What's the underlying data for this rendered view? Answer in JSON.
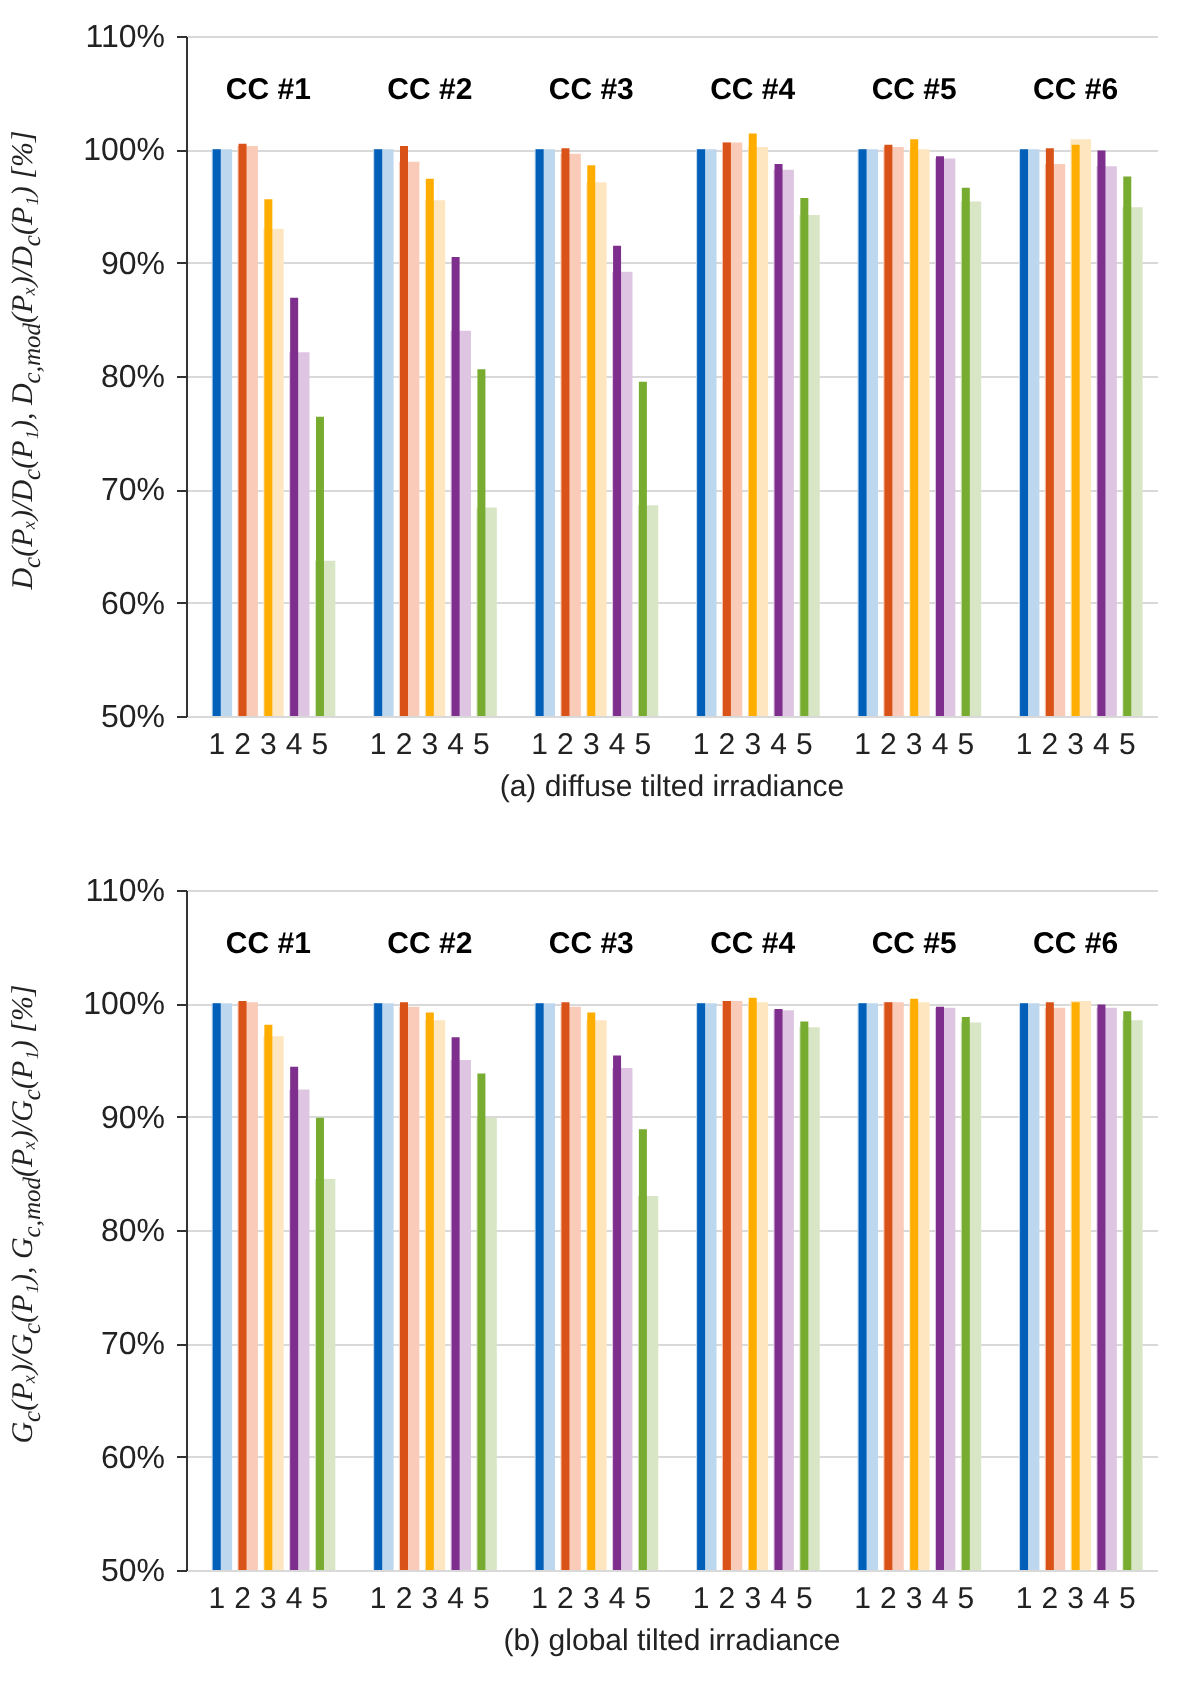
{
  "chart_data": [
    {
      "type": "bar",
      "xlabel": "(a) diffuse tilted irradiance",
      "ylabel": "D$_{c}$(Pₓ)/D$_{c}$(P₁), D$_{c,mod}$(Pₓ)/D$_{c}$(P₁) [%]",
      "categories": [
        "CC #1",
        "CC #2",
        "CC #3",
        "CC #4",
        "CC #5",
        "CC #6"
      ],
      "ylim": [
        50,
        110
      ],
      "yticks": [
        {
          "value": 50,
          "label": "50%"
        },
        {
          "value": 60,
          "label": "60%"
        },
        {
          "value": 70,
          "label": "70%"
        },
        {
          "value": 80,
          "label": "80%"
        },
        {
          "value": 90,
          "label": "90%"
        },
        {
          "value": 100,
          "label": "100%"
        },
        {
          "value": 110,
          "label": "110%"
        }
      ],
      "grid": "y",
      "series": [
        {
          "color": "#bcd7ee",
          "values": [
            100,
            100,
            100,
            100,
            100,
            100
          ]
        },
        {
          "color": "#f9cbb8",
          "values": [
            100.3,
            98.9,
            99.6,
            100.6,
            100.2,
            98.7
          ]
        },
        {
          "color": "#fde6c0",
          "values": [
            93.0,
            95.5,
            97.1,
            100.2,
            100,
            100.9
          ]
        },
        {
          "color": "#dec6e2",
          "values": [
            82.1,
            84.0,
            89.2,
            98.2,
            99.2,
            98.5
          ]
        },
        {
          "color": "#d8e6c6",
          "values": [
            63.7,
            68.4,
            68.6,
            94.2,
            95.4,
            94.9
          ]
        },
        {
          "name": "1",
          "color": "#005fb8",
          "values": [
            100,
            100,
            100,
            100,
            100,
            100
          ]
        },
        {
          "name": "2",
          "color": "#d95319",
          "values": [
            100.5,
            100.3,
            100.1,
            100.6,
            100.4,
            100.1
          ]
        },
        {
          "name": "3",
          "color": "#ffae00",
          "values": [
            95.6,
            97.4,
            98.6,
            101.4,
            100.9,
            100.4
          ]
        },
        {
          "name": "4",
          "color": "#7e2f8e",
          "values": [
            86.9,
            90.5,
            91.5,
            98.7,
            99.4,
            99.9
          ]
        },
        {
          "name": "5",
          "color": "#77ac30",
          "values": [
            76.4,
            80.6,
            79.5,
            95.7,
            96.6,
            97.6
          ]
        }
      ]
    },
    {
      "type": "bar",
      "xlabel": "(b) global tilted irradiance",
      "ylabel": "G$_{c}$(Pₓ)/G$_{c}$(P₁), G$_{c,mod}$(Pₓ)/G$_{c}$(P₁) [%]",
      "categories": [
        "CC #1",
        "CC #2",
        "CC #3",
        "CC #4",
        "CC #5",
        "CC #6"
      ],
      "ylim": [
        50,
        110
      ],
      "yticks": [
        {
          "value": 50,
          "label": "50%"
        },
        {
          "value": 60,
          "label": "60%"
        },
        {
          "value": 70,
          "label": "70%"
        },
        {
          "value": 80,
          "label": "80%"
        },
        {
          "value": 90,
          "label": "90%"
        },
        {
          "value": 100,
          "label": "100%"
        },
        {
          "value": 110,
          "label": "110%"
        }
      ],
      "grid": "y",
      "series": [
        {
          "color": "#bcd7ee",
          "values": [
            100,
            100,
            100,
            100,
            100,
            100
          ]
        },
        {
          "color": "#f9cbb8",
          "values": [
            100.1,
            99.7,
            99.7,
            100.2,
            100.1,
            99.6
          ]
        },
        {
          "color": "#fde6c0",
          "values": [
            97.1,
            98.5,
            98.5,
            100.1,
            100.1,
            100.2
          ]
        },
        {
          "color": "#dec6e2",
          "values": [
            92.4,
            95.0,
            94.3,
            99.4,
            99.6,
            99.6
          ]
        },
        {
          "color": "#d8e6c6",
          "values": [
            84.5,
            89.9,
            83.0,
            97.9,
            98.3,
            98.5
          ]
        },
        {
          "name": "1",
          "color": "#005fb8",
          "values": [
            100,
            100,
            100,
            100,
            100,
            100
          ]
        },
        {
          "name": "2",
          "color": "#d95319",
          "values": [
            100.2,
            100.1,
            100.1,
            100.2,
            100.1,
            100.1
          ]
        },
        {
          "name": "3",
          "color": "#ffae00",
          "values": [
            98.1,
            99.2,
            99.2,
            100.5,
            100.4,
            100.1
          ]
        },
        {
          "name": "4",
          "color": "#7e2f8e",
          "values": [
            94.4,
            97.0,
            95.4,
            99.5,
            99.7,
            99.9
          ]
        },
        {
          "name": "5",
          "color": "#77ac30",
          "values": [
            89.9,
            93.8,
            88.9,
            98.4,
            98.8,
            99.3
          ]
        }
      ]
    }
  ]
}
